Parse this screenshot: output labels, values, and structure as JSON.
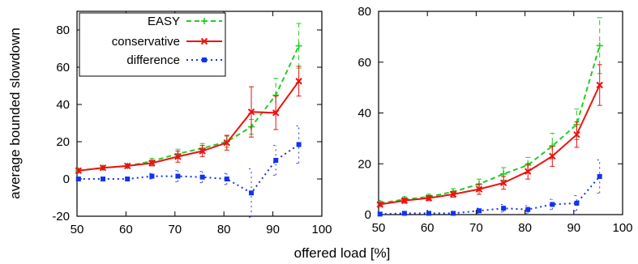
{
  "figure": {
    "ylabel": "average bounded slowdown",
    "xlabel": "offered load [%]"
  },
  "chart_data": [
    {
      "type": "line",
      "xlim": [
        50,
        100
      ],
      "ylim": [
        -20,
        90
      ],
      "xticks": [
        50,
        60,
        70,
        80,
        90,
        100
      ],
      "yticks": [
        -20,
        0,
        20,
        40,
        60,
        80
      ],
      "grid": false,
      "legend": "top-left",
      "series": [
        {
          "name": "EASY",
          "color": "#22cc22",
          "dash": "6,4",
          "marker": "plus",
          "x": [
            50.3,
            55.3,
            60.3,
            65.3,
            70.6,
            75.6,
            80.6,
            85.6,
            90.6,
            95.3
          ],
          "y": [
            4.5,
            6,
            7,
            9.5,
            13.5,
            16.5,
            20,
            28,
            45,
            71.5
          ],
          "err": [
            1,
            1,
            1,
            1.5,
            2.5,
            2.5,
            3,
            4,
            9,
            12
          ]
        },
        {
          "name": "conservative",
          "color": "#ee1111",
          "dash": "",
          "marker": "x",
          "x": [
            50.3,
            55.3,
            60.3,
            65.3,
            70.6,
            75.6,
            80.6,
            85.6,
            90.6,
            95.3
          ],
          "y": [
            4.5,
            6,
            7,
            8.5,
            12,
            15,
            19.5,
            36,
            35.5,
            52.5
          ],
          "err": [
            1,
            1,
            1,
            1.5,
            3,
            3,
            4,
            13.5,
            9,
            8
          ]
        },
        {
          "name": "difference",
          "color": "#1133ee",
          "dash": "2,4",
          "marker": "square",
          "x": [
            50.3,
            55.3,
            60.3,
            65.3,
            70.6,
            75.6,
            80.6,
            85.6,
            90.6,
            95.3
          ],
          "y": [
            0,
            0,
            0,
            1.5,
            1.5,
            1,
            0,
            -7.5,
            10,
            18.5
          ],
          "err": [
            1,
            1,
            1,
            1.5,
            3,
            3,
            3,
            13,
            8,
            10
          ]
        }
      ]
    },
    {
      "type": "line",
      "xlim": [
        50,
        100
      ],
      "ylim": [
        0,
        80
      ],
      "xticks": [
        50,
        60,
        70,
        80,
        90,
        100
      ],
      "yticks": [
        0,
        20,
        40,
        60,
        80
      ],
      "grid": false,
      "legend": "none",
      "series": [
        {
          "color": "#22cc22",
          "dash": "6,4",
          "marker": "plus",
          "x": [
            50.3,
            55.3,
            60.3,
            65.3,
            70.6,
            75.6,
            80.6,
            85.6,
            90.6,
            95.3
          ],
          "y": [
            4.5,
            6,
            7,
            9,
            12,
            16,
            19.5,
            27,
            35.5,
            66.5
          ],
          "err": [
            0.8,
            1,
            1,
            1.2,
            2,
            2.5,
            3,
            5,
            6,
            11
          ]
        },
        {
          "color": "#ee1111",
          "dash": "",
          "marker": "x",
          "x": [
            50.3,
            55.3,
            60.3,
            65.3,
            70.6,
            75.6,
            80.6,
            85.6,
            90.6,
            95.3
          ],
          "y": [
            4,
            5.5,
            6.5,
            8,
            10,
            12.5,
            17,
            23,
            31.5,
            51
          ],
          "err": [
            0.8,
            1,
            1,
            1.2,
            2,
            2.5,
            3,
            4,
            5,
            8
          ]
        },
        {
          "color": "#1133ee",
          "dash": "2,4",
          "marker": "square",
          "x": [
            50.3,
            55.3,
            60.3,
            65.3,
            70.6,
            75.6,
            80.6,
            85.6,
            90.6,
            95.3
          ],
          "y": [
            0.2,
            0.5,
            0.5,
            0.5,
            1.5,
            2.5,
            2,
            4,
            4.5,
            15
          ],
          "err": [
            0.5,
            0.5,
            0.5,
            0.5,
            1,
            1.5,
            1.5,
            2,
            3,
            6.5
          ]
        }
      ]
    }
  ]
}
